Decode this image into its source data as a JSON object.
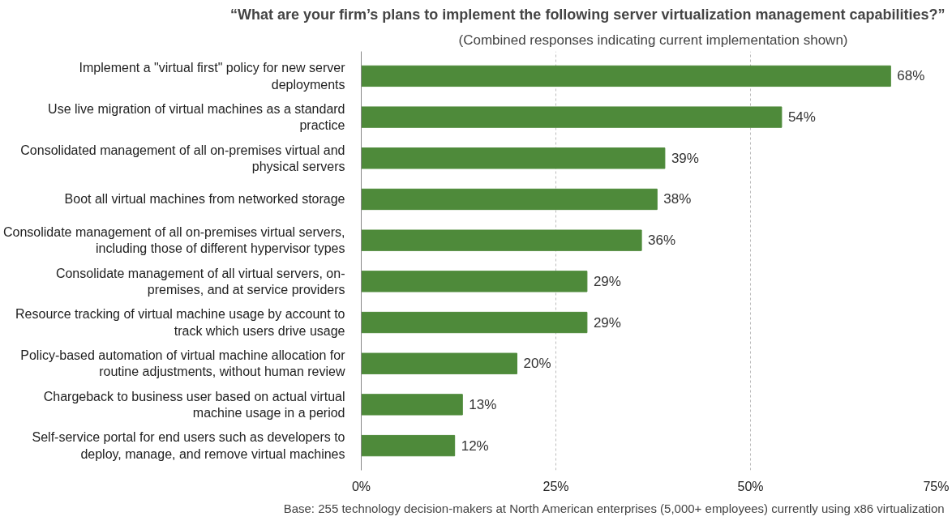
{
  "chart_data": {
    "type": "bar",
    "orientation": "horizontal",
    "title": "“What are your firm’s plans to implement the following server virtualization management capabilities?”",
    "subtitle": "(Combined responses indicating current implementation shown)",
    "categories": [
      "Implement a \"virtual first\" policy for new server deployments",
      "Use live migration of virtual machines as a standard practice",
      "Consolidated management of all on-premises virtual and physical servers",
      "Boot all virtual machines from networked storage",
      "Consolidate management of all on-premises virtual servers, including those of different hypervisor types",
      "Consolidate management of all virtual servers, on-premises, and at service providers",
      "Resource tracking of virtual machine usage by account to track which users drive usage",
      "Policy-based automation of virtual machine allocation for routine adjustments, without human review",
      "Chargeback to business user based on actual virtual machine usage in a period",
      "Self-service portal for end users such as developers to deploy, manage, and remove virtual machines"
    ],
    "values": [
      68,
      54,
      39,
      38,
      36,
      29,
      29,
      20,
      13,
      12
    ],
    "value_labels": [
      "68%",
      "54%",
      "39%",
      "38%",
      "36%",
      "29%",
      "29%",
      "20%",
      "13%",
      "12%"
    ],
    "color": "#4e8a3a",
    "xlim": [
      0,
      75
    ],
    "xticks": [
      {
        "value": 0,
        "label": "0%"
      },
      {
        "value": 25,
        "label": "25%"
      },
      {
        "value": 50,
        "label": "50%"
      },
      {
        "value": 75,
        "label": "75%"
      }
    ],
    "grid": "x",
    "annotations": [
      "Base: 255 technology decision-makers at North American enterprises (5,000+ employees) currently using x86 virtualization"
    ]
  }
}
